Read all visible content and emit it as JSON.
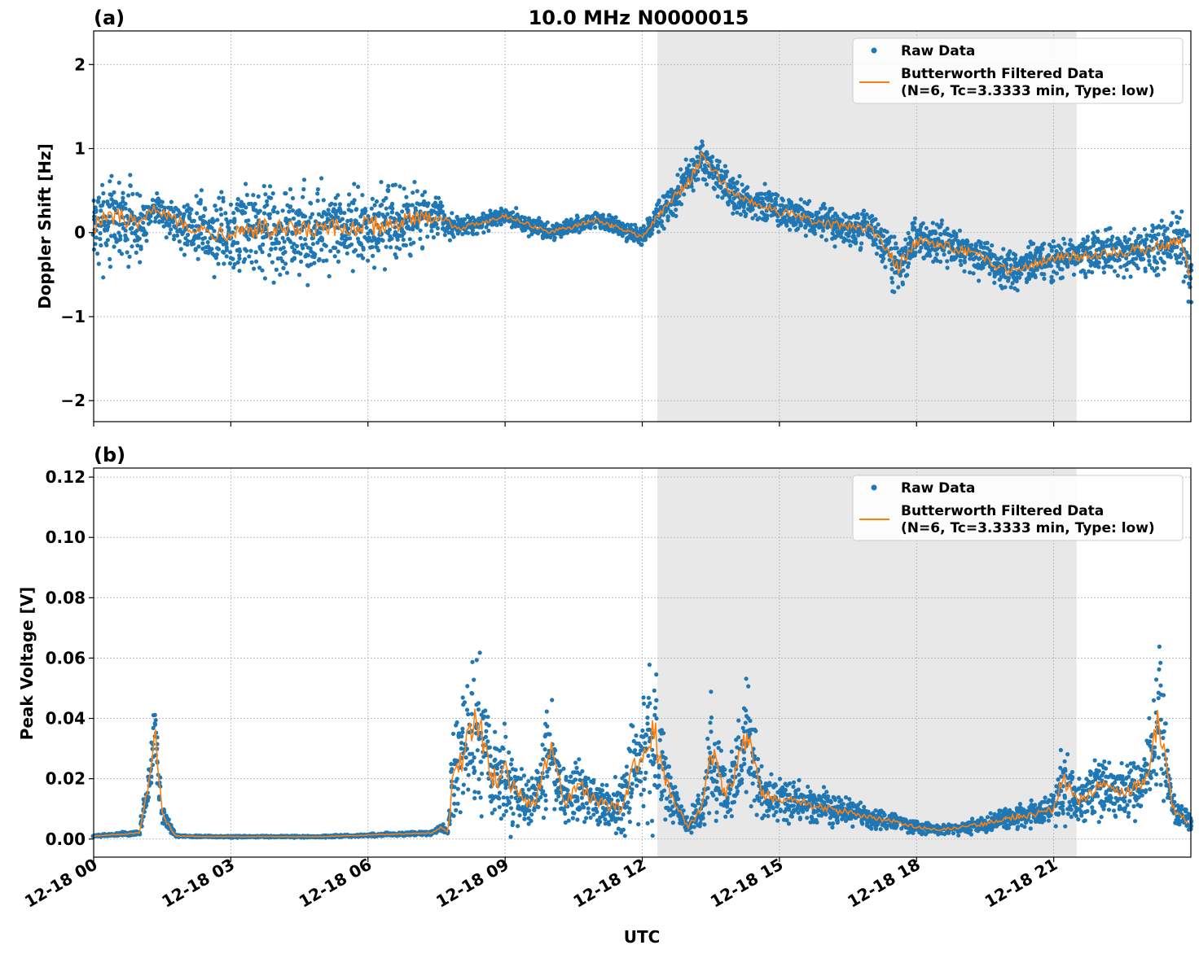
{
  "figure": {
    "x_tick_labels": [
      "12-18 00",
      "12-18 03",
      "12-18 06",
      "12-18 09",
      "12-18 12",
      "12-18 15",
      "12-18 18",
      "12-18 21"
    ],
    "xlabel": "UTC",
    "xlim_hours": [
      0,
      24
    ],
    "shaded_interval_hours": [
      12.33,
      21.5
    ],
    "colors": {
      "raw": "#1f77b4",
      "filtered": "#ff7f0e",
      "shade": "#e8e8e8",
      "grid": "#b0b0b0"
    }
  },
  "legend": {
    "raw_label": "Raw Data",
    "filtered_label_line1": "Butterworth Filtered Data",
    "filtered_label_line2": "(N=6, Tc=3.3333 min, Type: low)"
  },
  "chart_data": [
    {
      "type": "scatter",
      "panel_label": "(a)",
      "title": "10.0 MHz N0000015",
      "xlabel": "",
      "ylabel": "Doppler Shift [Hz]",
      "ylim": [
        -2.25,
        2.4
      ],
      "y_ticks": [
        -2,
        -1,
        0,
        1,
        2
      ],
      "y_tick_labels": [
        "−2",
        "−1",
        "0",
        "1",
        "2"
      ],
      "grid": true,
      "legend_position": "top-right",
      "series": [
        {
          "name": "Raw Data",
          "x_hours": [
            0,
            0.5,
            1.0,
            1.3,
            1.8,
            2.5,
            3.5,
            4.5,
            5.5,
            6.5,
            7.5,
            8.0,
            9.0,
            10.0,
            11.0,
            12.0,
            12.5,
            13.0,
            13.3,
            14.0,
            15.0,
            16.0,
            17.0,
            17.6,
            18.0,
            19.0,
            20.0,
            21.0,
            22.0,
            23.0,
            23.8,
            24.0
          ],
          "y_center": [
            0.1,
            0.2,
            0.05,
            0.3,
            0.15,
            0.0,
            0.05,
            0.0,
            0.05,
            0.1,
            0.2,
            0.05,
            0.2,
            0.0,
            0.15,
            -0.05,
            0.3,
            0.6,
            0.9,
            0.45,
            0.25,
            0.1,
            0.05,
            -0.4,
            -0.1,
            -0.2,
            -0.45,
            -0.3,
            -0.25,
            -0.2,
            -0.1,
            -0.6
          ],
          "y_spread": [
            0.8,
            0.7,
            0.6,
            0.2,
            0.4,
            0.6,
            0.8,
            0.8,
            0.7,
            0.7,
            0.4,
            0.15,
            0.15,
            0.15,
            0.15,
            0.15,
            0.3,
            0.4,
            0.35,
            0.3,
            0.3,
            0.3,
            0.3,
            0.5,
            0.35,
            0.35,
            0.35,
            0.35,
            0.35,
            0.4,
            0.45,
            0.5
          ]
        },
        {
          "name": "Butterworth Filtered Data\n(N=6, Tc=3.3333 min, Type: low)",
          "x_hours": [
            0,
            0.5,
            1.0,
            1.3,
            1.8,
            2.5,
            3.5,
            4.5,
            5.5,
            6.5,
            7.5,
            8.0,
            9.0,
            10.0,
            11.0,
            12.0,
            12.5,
            13.0,
            13.3,
            14.0,
            15.0,
            16.0,
            17.0,
            17.6,
            18.0,
            19.0,
            20.0,
            21.0,
            22.0,
            23.0,
            23.8,
            24.0
          ],
          "y": [
            0.1,
            0.2,
            0.05,
            0.3,
            0.15,
            0.0,
            0.05,
            0.0,
            0.05,
            0.1,
            0.2,
            0.05,
            0.2,
            0.0,
            0.15,
            -0.05,
            0.3,
            0.6,
            0.9,
            0.45,
            0.25,
            0.1,
            0.05,
            -0.4,
            -0.1,
            -0.2,
            -0.45,
            -0.3,
            -0.25,
            -0.2,
            -0.1,
            -0.6
          ]
        }
      ]
    },
    {
      "type": "scatter",
      "panel_label": "(b)",
      "title": "",
      "xlabel": "UTC",
      "ylabel": "Peak Voltage [V]",
      "ylim": [
        -0.006,
        0.123
      ],
      "y_ticks": [
        0,
        0.02,
        0.04,
        0.06,
        0.08,
        0.1,
        0.12
      ],
      "y_tick_labels": [
        "0.00",
        "0.02",
        "0.04",
        "0.06",
        "0.08",
        "0.10",
        "0.12"
      ],
      "grid": true,
      "legend_position": "top-right",
      "series": [
        {
          "name": "Raw Data",
          "x_hours": [
            0,
            1.0,
            1.2,
            1.35,
            1.5,
            1.8,
            2.5,
            5.0,
            7.4,
            7.6,
            7.75,
            7.85,
            8.0,
            8.4,
            8.7,
            9.0,
            9.3,
            9.6,
            10.0,
            10.3,
            10.6,
            11.0,
            11.5,
            12.0,
            12.25,
            12.6,
            13.0,
            13.3,
            13.5,
            13.8,
            14.0,
            14.3,
            14.6,
            15.0,
            15.5,
            16.0,
            16.5,
            17.0,
            17.5,
            18.0,
            18.5,
            19.0,
            19.5,
            20.0,
            20.5,
            21.0,
            21.2,
            21.5,
            22.0,
            22.5,
            23.0,
            23.3,
            23.6,
            24.0
          ],
          "y_center": [
            0.001,
            0.002,
            0.018,
            0.035,
            0.008,
            0.001,
            0.0008,
            0.0008,
            0.002,
            0.004,
            0.002,
            0.02,
            0.025,
            0.04,
            0.02,
            0.022,
            0.015,
            0.01,
            0.03,
            0.012,
            0.018,
            0.012,
            0.01,
            0.03,
            0.035,
            0.015,
            0.004,
            0.01,
            0.03,
            0.015,
            0.02,
            0.035,
            0.015,
            0.013,
            0.012,
            0.01,
            0.009,
            0.007,
            0.006,
            0.004,
            0.003,
            0.004,
            0.005,
            0.007,
            0.008,
            0.01,
            0.02,
            0.012,
            0.018,
            0.015,
            0.02,
            0.04,
            0.01,
            0.005
          ],
          "y_spread": [
            0.0005,
            0.001,
            0.01,
            0.02,
            0.006,
            0.0005,
            0.0004,
            0.0004,
            0.001,
            0.002,
            0.001,
            0.02,
            0.025,
            0.04,
            0.02,
            0.025,
            0.015,
            0.012,
            0.025,
            0.012,
            0.015,
            0.012,
            0.012,
            0.03,
            0.04,
            0.012,
            0.003,
            0.01,
            0.03,
            0.012,
            0.018,
            0.03,
            0.012,
            0.01,
            0.009,
            0.008,
            0.007,
            0.005,
            0.004,
            0.003,
            0.002,
            0.003,
            0.004,
            0.005,
            0.006,
            0.008,
            0.02,
            0.01,
            0.015,
            0.012,
            0.015,
            0.035,
            0.008,
            0.004
          ]
        },
        {
          "name": "Butterworth Filtered Data\n(N=6, Tc=3.3333 min, Type: low)",
          "x_hours": [
            0,
            1.0,
            1.2,
            1.35,
            1.5,
            1.8,
            2.5,
            5.0,
            7.4,
            7.6,
            7.75,
            7.85,
            8.0,
            8.4,
            8.7,
            9.0,
            9.3,
            9.6,
            10.0,
            10.3,
            10.6,
            11.0,
            11.5,
            12.0,
            12.25,
            12.6,
            13.0,
            13.3,
            13.5,
            13.8,
            14.0,
            14.3,
            14.6,
            15.0,
            15.5,
            16.0,
            16.5,
            17.0,
            17.5,
            18.0,
            18.5,
            19.0,
            19.5,
            20.0,
            20.5,
            21.0,
            21.2,
            21.5,
            22.0,
            22.5,
            23.0,
            23.3,
            23.6,
            24.0
          ],
          "y": [
            0.001,
            0.002,
            0.018,
            0.035,
            0.008,
            0.001,
            0.0008,
            0.0008,
            0.002,
            0.004,
            0.002,
            0.02,
            0.025,
            0.04,
            0.02,
            0.022,
            0.015,
            0.01,
            0.03,
            0.012,
            0.018,
            0.012,
            0.01,
            0.03,
            0.035,
            0.015,
            0.004,
            0.01,
            0.03,
            0.015,
            0.02,
            0.035,
            0.015,
            0.013,
            0.012,
            0.01,
            0.009,
            0.007,
            0.006,
            0.004,
            0.003,
            0.004,
            0.005,
            0.007,
            0.008,
            0.01,
            0.02,
            0.012,
            0.018,
            0.015,
            0.02,
            0.04,
            0.01,
            0.005
          ]
        }
      ]
    }
  ]
}
